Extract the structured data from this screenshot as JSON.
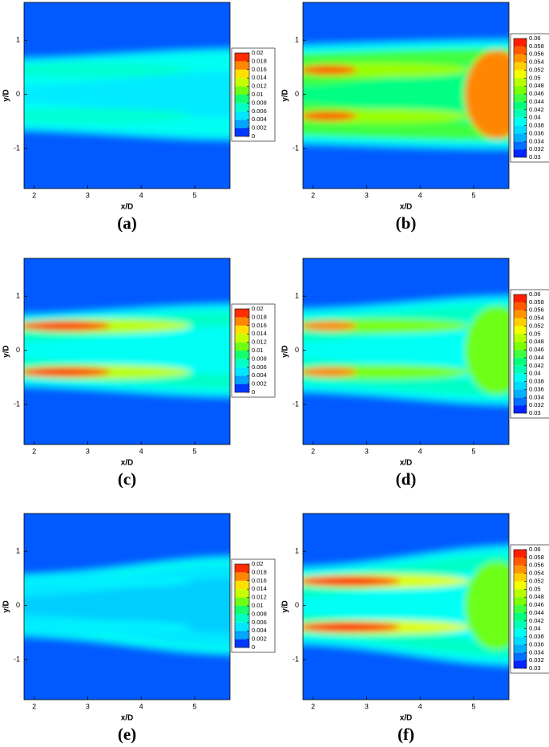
{
  "chart_data": [
    {
      "type": "contour",
      "label": "(a)",
      "xlabel": "x/D",
      "ylabel": "y/D",
      "xlim": [
        1.81,
        5.66
      ],
      "ylim": [
        -1.74,
        1.7
      ],
      "xticks": [
        2,
        3,
        4,
        5
      ],
      "yticks": [
        -1,
        0,
        1
      ],
      "colorbar_lim": [
        0,
        0.02
      ],
      "colorbar_ticks": [
        0,
        0.002,
        0.004,
        0.006,
        0.008,
        0.01,
        0.012,
        0.014,
        0.016,
        0.018,
        0.02
      ],
      "colormap": [
        "#0000ff",
        "#00a0ff",
        "#00ffff",
        "#00ff80",
        "#80ff00",
        "#ffff00",
        "#ff8000",
        "#ff0000"
      ]
    },
    {
      "type": "contour",
      "label": "(b)",
      "xlabel": "x/D",
      "ylabel": "y/D",
      "xlim": [
        1.81,
        5.66
      ],
      "ylim": [
        -1.74,
        1.7
      ],
      "xticks": [
        2,
        3,
        4,
        5
      ],
      "yticks": [
        -1,
        0,
        1
      ],
      "colorbar_lim": [
        0.03,
        0.06
      ],
      "colorbar_ticks": [
        0.03,
        0.032,
        0.034,
        0.036,
        0.038,
        0.04,
        0.042,
        0.044,
        0.046,
        0.048,
        0.05,
        0.052,
        0.054,
        0.056,
        0.058,
        0.06
      ],
      "colormap": [
        "#0000ff",
        "#00a0ff",
        "#00ffff",
        "#00ff80",
        "#80ff00",
        "#ffff00",
        "#ff8000",
        "#ff0000"
      ]
    },
    {
      "type": "contour",
      "label": "(c)",
      "xlabel": "x/D",
      "ylabel": "y/D",
      "xlim": [
        1.81,
        5.66
      ],
      "ylim": [
        -1.74,
        1.7
      ],
      "xticks": [
        2,
        3,
        4,
        5
      ],
      "yticks": [
        -1,
        0,
        1
      ],
      "colorbar_lim": [
        0,
        0.02
      ],
      "colorbar_ticks": [
        0,
        0.002,
        0.004,
        0.006,
        0.008,
        0.01,
        0.012,
        0.014,
        0.016,
        0.018,
        0.02
      ],
      "colormap": [
        "#0000ff",
        "#00a0ff",
        "#00ffff",
        "#00ff80",
        "#80ff00",
        "#ffff00",
        "#ff8000",
        "#ff0000"
      ]
    },
    {
      "type": "contour",
      "label": "(d)",
      "xlabel": "x/D",
      "ylabel": "y/D",
      "xlim": [
        1.81,
        5.66
      ],
      "ylim": [
        -1.74,
        1.7
      ],
      "xticks": [
        2,
        3,
        4,
        5
      ],
      "yticks": [
        -1,
        0,
        1
      ],
      "colorbar_lim": [
        0.03,
        0.06
      ],
      "colorbar_ticks": [
        0.03,
        0.032,
        0.034,
        0.036,
        0.038,
        0.04,
        0.042,
        0.044,
        0.046,
        0.048,
        0.05,
        0.052,
        0.054,
        0.056,
        0.058,
        0.06
      ],
      "colormap": [
        "#0000ff",
        "#00a0ff",
        "#00ffff",
        "#00ff80",
        "#80ff00",
        "#ffff00",
        "#ff8000",
        "#ff0000"
      ]
    },
    {
      "type": "contour",
      "label": "(e)",
      "xlabel": "x/D",
      "ylabel": "y/D",
      "xlim": [
        1.81,
        5.66
      ],
      "ylim": [
        -1.74,
        1.7
      ],
      "xticks": [
        2,
        3,
        4,
        5
      ],
      "yticks": [
        -1,
        0,
        1
      ],
      "colorbar_lim": [
        0,
        0.02
      ],
      "colorbar_ticks": [
        0,
        0.002,
        0.004,
        0.006,
        0.008,
        0.01,
        0.012,
        0.014,
        0.016,
        0.018,
        0.02
      ],
      "colormap": [
        "#0000ff",
        "#00a0ff",
        "#00ffff",
        "#00ff80",
        "#80ff00",
        "#ffff00",
        "#ff8000",
        "#ff0000"
      ]
    },
    {
      "type": "contour",
      "label": "(f)",
      "xlabel": "x/D",
      "ylabel": "y/D",
      "xlim": [
        1.81,
        5.66
      ],
      "ylim": [
        -1.74,
        1.7
      ],
      "xticks": [
        2,
        3,
        4,
        5
      ],
      "yticks": [
        -1,
        0,
        1
      ],
      "colorbar_lim": [
        0.03,
        0.06
      ],
      "colorbar_ticks": [
        0.03,
        0.032,
        0.034,
        0.036,
        0.038,
        0.04,
        0.042,
        0.044,
        0.046,
        0.048,
        0.05,
        0.052,
        0.054,
        0.056,
        0.058,
        0.06
      ],
      "colormap": [
        "#0000ff",
        "#00a0ff",
        "#00ffff",
        "#00ff80",
        "#80ff00",
        "#ffff00",
        "#ff8000",
        "#ff0000"
      ]
    }
  ]
}
